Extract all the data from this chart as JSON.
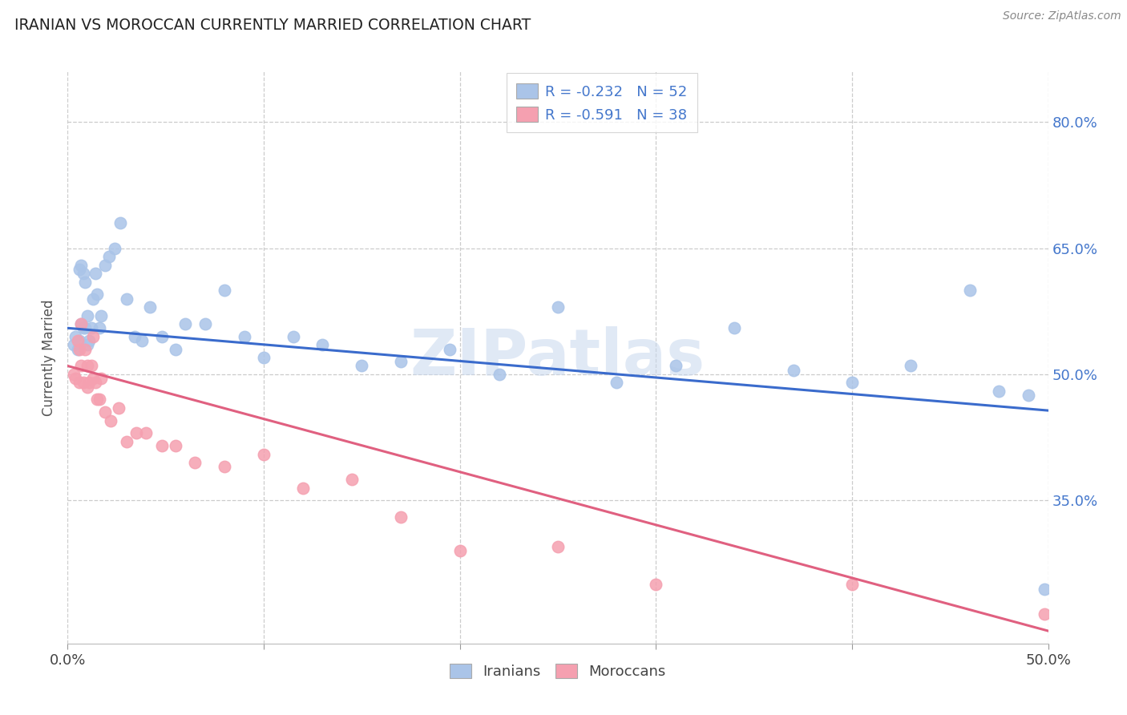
{
  "title": "IRANIAN VS MOROCCAN CURRENTLY MARRIED CORRELATION CHART",
  "source": "Source: ZipAtlas.com",
  "ylabel": "Currently Married",
  "xlabel": "",
  "xlim": [
    0.0,
    0.5
  ],
  "ylim": [
    0.18,
    0.86
  ],
  "ytick_labels": [
    "35.0%",
    "50.0%",
    "65.0%",
    "80.0%"
  ],
  "ytick_positions": [
    0.35,
    0.5,
    0.65,
    0.8
  ],
  "background_color": "#ffffff",
  "grid_color": "#cccccc",
  "iranian_color": "#aac4e8",
  "moroccan_color": "#f5a0b0",
  "iranian_line_color": "#3a6bcc",
  "moroccan_line_color": "#e06080",
  "iranian_R": -0.232,
  "iranian_N": 52,
  "moroccan_R": -0.591,
  "moroccan_N": 38,
  "watermark": "ZIPatlas",
  "legend_label_iranian": "Iranians",
  "legend_label_moroccan": "Moroccans",
  "iran_line_y0": 0.555,
  "iran_line_y1": 0.457,
  "moroc_line_y0": 0.51,
  "moroc_line_y1": 0.195,
  "iranian_x": [
    0.003,
    0.004,
    0.005,
    0.006,
    0.006,
    0.007,
    0.007,
    0.008,
    0.008,
    0.009,
    0.009,
    0.01,
    0.01,
    0.011,
    0.012,
    0.013,
    0.014,
    0.015,
    0.016,
    0.017,
    0.019,
    0.021,
    0.024,
    0.027,
    0.03,
    0.034,
    0.038,
    0.042,
    0.048,
    0.055,
    0.06,
    0.07,
    0.08,
    0.09,
    0.1,
    0.115,
    0.13,
    0.15,
    0.17,
    0.195,
    0.22,
    0.25,
    0.28,
    0.31,
    0.34,
    0.37,
    0.4,
    0.43,
    0.46,
    0.475,
    0.49,
    0.498
  ],
  "iranian_y": [
    0.535,
    0.545,
    0.53,
    0.54,
    0.625,
    0.63,
    0.56,
    0.555,
    0.62,
    0.61,
    0.555,
    0.57,
    0.535,
    0.54,
    0.555,
    0.59,
    0.62,
    0.595,
    0.555,
    0.57,
    0.63,
    0.64,
    0.65,
    0.68,
    0.59,
    0.545,
    0.54,
    0.58,
    0.545,
    0.53,
    0.56,
    0.56,
    0.6,
    0.545,
    0.52,
    0.545,
    0.535,
    0.51,
    0.515,
    0.53,
    0.5,
    0.58,
    0.49,
    0.51,
    0.555,
    0.505,
    0.49,
    0.51,
    0.6,
    0.48,
    0.475,
    0.245
  ],
  "moroccan_x": [
    0.003,
    0.004,
    0.005,
    0.006,
    0.006,
    0.007,
    0.007,
    0.008,
    0.009,
    0.01,
    0.01,
    0.011,
    0.012,
    0.013,
    0.013,
    0.014,
    0.015,
    0.016,
    0.017,
    0.019,
    0.022,
    0.026,
    0.03,
    0.035,
    0.04,
    0.048,
    0.055,
    0.065,
    0.08,
    0.1,
    0.12,
    0.145,
    0.17,
    0.2,
    0.25,
    0.3,
    0.4,
    0.498
  ],
  "moroccan_y": [
    0.5,
    0.495,
    0.54,
    0.53,
    0.49,
    0.56,
    0.51,
    0.49,
    0.53,
    0.485,
    0.51,
    0.49,
    0.51,
    0.495,
    0.545,
    0.49,
    0.47,
    0.47,
    0.495,
    0.455,
    0.445,
    0.46,
    0.42,
    0.43,
    0.43,
    0.415,
    0.415,
    0.395,
    0.39,
    0.405,
    0.365,
    0.375,
    0.33,
    0.29,
    0.295,
    0.25,
    0.25,
    0.215
  ]
}
